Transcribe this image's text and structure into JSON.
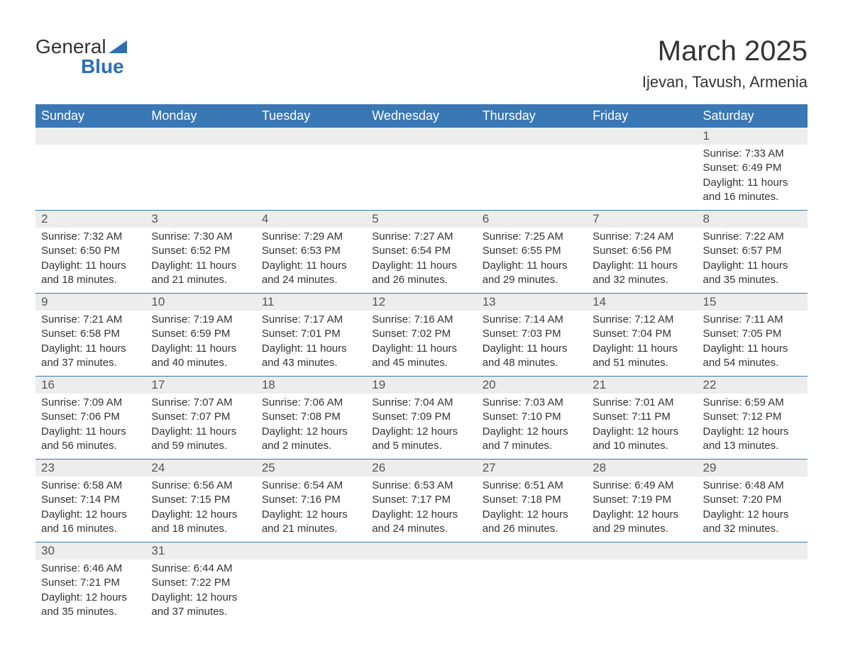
{
  "logo": {
    "word1": "General",
    "word2": "Blue"
  },
  "title": {
    "month": "March 2025",
    "location": "Ijevan, Tavush, Armenia"
  },
  "colors": {
    "header_bg": "#3a77b5",
    "header_text": "#ffffff",
    "daynum_bg": "#ededed",
    "border": "#3a77b5",
    "text": "#333333",
    "logo_accent": "#2f6fb0",
    "page_bg": "#ffffff"
  },
  "fonts": {
    "title_size_pt": 30,
    "location_size_pt": 16,
    "header_size_pt": 14,
    "body_size_pt": 11
  },
  "daysOfWeek": [
    "Sunday",
    "Monday",
    "Tuesday",
    "Wednesday",
    "Thursday",
    "Friday",
    "Saturday"
  ],
  "weeks": [
    [
      {
        "n": "",
        "sr": "",
        "ss": "",
        "dl": ""
      },
      {
        "n": "",
        "sr": "",
        "ss": "",
        "dl": ""
      },
      {
        "n": "",
        "sr": "",
        "ss": "",
        "dl": ""
      },
      {
        "n": "",
        "sr": "",
        "ss": "",
        "dl": ""
      },
      {
        "n": "",
        "sr": "",
        "ss": "",
        "dl": ""
      },
      {
        "n": "",
        "sr": "",
        "ss": "",
        "dl": ""
      },
      {
        "n": "1",
        "sr": "Sunrise: 7:33 AM",
        "ss": "Sunset: 6:49 PM",
        "dl": "Daylight: 11 hours and 16 minutes."
      }
    ],
    [
      {
        "n": "2",
        "sr": "Sunrise: 7:32 AM",
        "ss": "Sunset: 6:50 PM",
        "dl": "Daylight: 11 hours and 18 minutes."
      },
      {
        "n": "3",
        "sr": "Sunrise: 7:30 AM",
        "ss": "Sunset: 6:52 PM",
        "dl": "Daylight: 11 hours and 21 minutes."
      },
      {
        "n": "4",
        "sr": "Sunrise: 7:29 AM",
        "ss": "Sunset: 6:53 PM",
        "dl": "Daylight: 11 hours and 24 minutes."
      },
      {
        "n": "5",
        "sr": "Sunrise: 7:27 AM",
        "ss": "Sunset: 6:54 PM",
        "dl": "Daylight: 11 hours and 26 minutes."
      },
      {
        "n": "6",
        "sr": "Sunrise: 7:25 AM",
        "ss": "Sunset: 6:55 PM",
        "dl": "Daylight: 11 hours and 29 minutes."
      },
      {
        "n": "7",
        "sr": "Sunrise: 7:24 AM",
        "ss": "Sunset: 6:56 PM",
        "dl": "Daylight: 11 hours and 32 minutes."
      },
      {
        "n": "8",
        "sr": "Sunrise: 7:22 AM",
        "ss": "Sunset: 6:57 PM",
        "dl": "Daylight: 11 hours and 35 minutes."
      }
    ],
    [
      {
        "n": "9",
        "sr": "Sunrise: 7:21 AM",
        "ss": "Sunset: 6:58 PM",
        "dl": "Daylight: 11 hours and 37 minutes."
      },
      {
        "n": "10",
        "sr": "Sunrise: 7:19 AM",
        "ss": "Sunset: 6:59 PM",
        "dl": "Daylight: 11 hours and 40 minutes."
      },
      {
        "n": "11",
        "sr": "Sunrise: 7:17 AM",
        "ss": "Sunset: 7:01 PM",
        "dl": "Daylight: 11 hours and 43 minutes."
      },
      {
        "n": "12",
        "sr": "Sunrise: 7:16 AM",
        "ss": "Sunset: 7:02 PM",
        "dl": "Daylight: 11 hours and 45 minutes."
      },
      {
        "n": "13",
        "sr": "Sunrise: 7:14 AM",
        "ss": "Sunset: 7:03 PM",
        "dl": "Daylight: 11 hours and 48 minutes."
      },
      {
        "n": "14",
        "sr": "Sunrise: 7:12 AM",
        "ss": "Sunset: 7:04 PM",
        "dl": "Daylight: 11 hours and 51 minutes."
      },
      {
        "n": "15",
        "sr": "Sunrise: 7:11 AM",
        "ss": "Sunset: 7:05 PM",
        "dl": "Daylight: 11 hours and 54 minutes."
      }
    ],
    [
      {
        "n": "16",
        "sr": "Sunrise: 7:09 AM",
        "ss": "Sunset: 7:06 PM",
        "dl": "Daylight: 11 hours and 56 minutes."
      },
      {
        "n": "17",
        "sr": "Sunrise: 7:07 AM",
        "ss": "Sunset: 7:07 PM",
        "dl": "Daylight: 11 hours and 59 minutes."
      },
      {
        "n": "18",
        "sr": "Sunrise: 7:06 AM",
        "ss": "Sunset: 7:08 PM",
        "dl": "Daylight: 12 hours and 2 minutes."
      },
      {
        "n": "19",
        "sr": "Sunrise: 7:04 AM",
        "ss": "Sunset: 7:09 PM",
        "dl": "Daylight: 12 hours and 5 minutes."
      },
      {
        "n": "20",
        "sr": "Sunrise: 7:03 AM",
        "ss": "Sunset: 7:10 PM",
        "dl": "Daylight: 12 hours and 7 minutes."
      },
      {
        "n": "21",
        "sr": "Sunrise: 7:01 AM",
        "ss": "Sunset: 7:11 PM",
        "dl": "Daylight: 12 hours and 10 minutes."
      },
      {
        "n": "22",
        "sr": "Sunrise: 6:59 AM",
        "ss": "Sunset: 7:12 PM",
        "dl": "Daylight: 12 hours and 13 minutes."
      }
    ],
    [
      {
        "n": "23",
        "sr": "Sunrise: 6:58 AM",
        "ss": "Sunset: 7:14 PM",
        "dl": "Daylight: 12 hours and 16 minutes."
      },
      {
        "n": "24",
        "sr": "Sunrise: 6:56 AM",
        "ss": "Sunset: 7:15 PM",
        "dl": "Daylight: 12 hours and 18 minutes."
      },
      {
        "n": "25",
        "sr": "Sunrise: 6:54 AM",
        "ss": "Sunset: 7:16 PM",
        "dl": "Daylight: 12 hours and 21 minutes."
      },
      {
        "n": "26",
        "sr": "Sunrise: 6:53 AM",
        "ss": "Sunset: 7:17 PM",
        "dl": "Daylight: 12 hours and 24 minutes."
      },
      {
        "n": "27",
        "sr": "Sunrise: 6:51 AM",
        "ss": "Sunset: 7:18 PM",
        "dl": "Daylight: 12 hours and 26 minutes."
      },
      {
        "n": "28",
        "sr": "Sunrise: 6:49 AM",
        "ss": "Sunset: 7:19 PM",
        "dl": "Daylight: 12 hours and 29 minutes."
      },
      {
        "n": "29",
        "sr": "Sunrise: 6:48 AM",
        "ss": "Sunset: 7:20 PM",
        "dl": "Daylight: 12 hours and 32 minutes."
      }
    ],
    [
      {
        "n": "30",
        "sr": "Sunrise: 6:46 AM",
        "ss": "Sunset: 7:21 PM",
        "dl": "Daylight: 12 hours and 35 minutes."
      },
      {
        "n": "31",
        "sr": "Sunrise: 6:44 AM",
        "ss": "Sunset: 7:22 PM",
        "dl": "Daylight: 12 hours and 37 minutes."
      },
      {
        "n": "",
        "sr": "",
        "ss": "",
        "dl": ""
      },
      {
        "n": "",
        "sr": "",
        "ss": "",
        "dl": ""
      },
      {
        "n": "",
        "sr": "",
        "ss": "",
        "dl": ""
      },
      {
        "n": "",
        "sr": "",
        "ss": "",
        "dl": ""
      },
      {
        "n": "",
        "sr": "",
        "ss": "",
        "dl": ""
      }
    ]
  ]
}
